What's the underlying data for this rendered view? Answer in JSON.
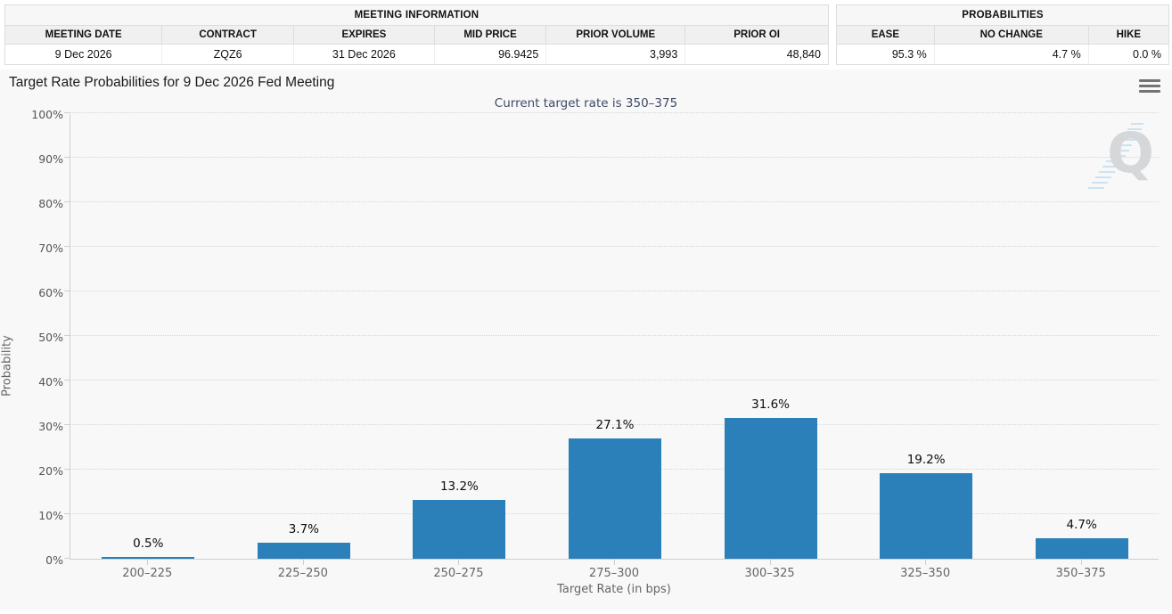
{
  "meeting_information": {
    "title": "MEETING INFORMATION",
    "columns": [
      "MEETING DATE",
      "CONTRACT",
      "EXPIRES",
      "MID PRICE",
      "PRIOR VOLUME",
      "PRIOR OI"
    ],
    "row": {
      "meeting_date": "9 Dec 2026",
      "contract": "ZQZ6",
      "expires": "31 Dec 2026",
      "mid_price": "96.9425",
      "prior_volume": "3,993",
      "prior_oi": "48,840"
    }
  },
  "probabilities": {
    "title": "PROBABILITIES",
    "columns": [
      "EASE",
      "NO CHANGE",
      "HIKE"
    ],
    "row": {
      "ease": "95.3 %",
      "no_change": "4.7 %",
      "hike": "0.0 %"
    }
  },
  "chart_data": {
    "type": "bar",
    "title": "Target Rate Probabilities for 9 Dec 2026 Fed Meeting",
    "subtitle": "Current target rate is 350–375",
    "categories": [
      "200–225",
      "225–250",
      "250–275",
      "275–300",
      "300–325",
      "325–350",
      "350–375"
    ],
    "values": [
      0.5,
      3.7,
      13.2,
      27.1,
      31.6,
      19.2,
      4.7
    ],
    "value_labels": [
      "0.5%",
      "3.7%",
      "13.2%",
      "27.1%",
      "31.6%",
      "19.2%",
      "4.7%"
    ],
    "xlabel": "Target Rate (in bps)",
    "ylabel": "Probability",
    "ylim": [
      0,
      100
    ],
    "ytick_step": 10,
    "ytick_suffix": "%",
    "grid": "dotted",
    "legend": "none",
    "bar_color": "#2b80b9"
  },
  "icons": {
    "chart_menu": "hamburger-menu",
    "watermark_letter": "Q"
  },
  "colors": {
    "bar": "#2b80b9",
    "subtitle": "#3f4b66",
    "chart_background": "#f8f8f8"
  }
}
